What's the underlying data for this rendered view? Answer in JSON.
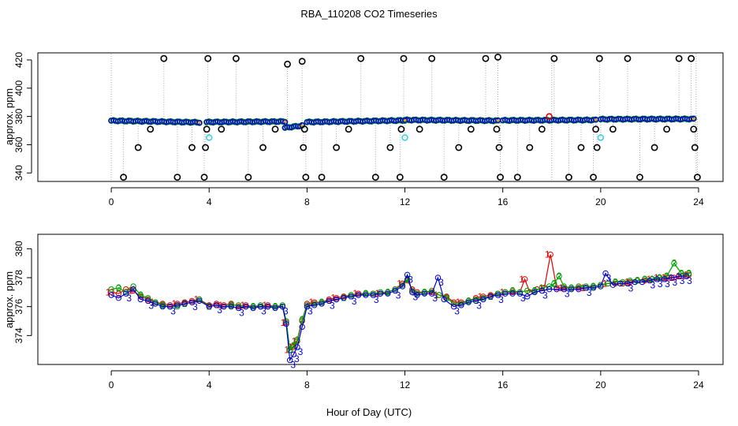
{
  "chart_data": {
    "title": "RBA_110208  CO2 Timeseries",
    "xlabel": "Hour of Day (UTC)",
    "panels": [
      {
        "type": "scatter",
        "ylabel": "approx. ppm",
        "xlim": [
          -3,
          25
        ],
        "ylim": [
          334,
          425
        ],
        "xticks": [
          0,
          4,
          8,
          12,
          16,
          20,
          24
        ],
        "yticks": [
          340,
          360,
          380,
          400,
          420
        ],
        "baseline_segments": [
          {
            "x": [
              0.0,
              3.6
            ],
            "y": [
              377.0,
              375.8
            ]
          },
          {
            "x": [
              3.9,
              7.1
            ],
            "y": [
              376.0,
              376.4
            ]
          },
          {
            "x": [
              7.1,
              7.8
            ],
            "y": [
              372.0,
              373.5
            ]
          },
          {
            "x": [
              8.0,
              12.0
            ],
            "y": [
              376.0,
              377.2
            ]
          },
          {
            "x": [
              12.0,
              15.8
            ],
            "y": [
              377.5,
              377.0
            ]
          },
          {
            "x": [
              16.0,
              19.8
            ],
            "y": [
              377.2,
              377.5
            ]
          },
          {
            "x": [
              20.0,
              23.8
            ],
            "y": [
              378.0,
              378.2
            ]
          }
        ],
        "outliers_black": [
          {
            "x": 0.5,
            "y": 337
          },
          {
            "x": 1.1,
            "y": 358
          },
          {
            "x": 1.6,
            "y": 371
          },
          {
            "x": 2.15,
            "y": 421
          },
          {
            "x": 2.7,
            "y": 337
          },
          {
            "x": 3.3,
            "y": 358
          },
          {
            "x": 3.8,
            "y": 337
          },
          {
            "x": 3.85,
            "y": 358
          },
          {
            "x": 3.9,
            "y": 371
          },
          {
            "x": 3.95,
            "y": 421
          },
          {
            "x": 4.5,
            "y": 371
          },
          {
            "x": 5.1,
            "y": 421
          },
          {
            "x": 5.6,
            "y": 337
          },
          {
            "x": 6.2,
            "y": 358
          },
          {
            "x": 6.7,
            "y": 371
          },
          {
            "x": 7.2,
            "y": 417
          },
          {
            "x": 7.8,
            "y": 419
          },
          {
            "x": 7.85,
            "y": 358
          },
          {
            "x": 7.9,
            "y": 371
          },
          {
            "x": 7.95,
            "y": 337
          },
          {
            "x": 8.6,
            "y": 337
          },
          {
            "x": 9.2,
            "y": 358
          },
          {
            "x": 9.7,
            "y": 371
          },
          {
            "x": 10.2,
            "y": 421
          },
          {
            "x": 10.8,
            "y": 337
          },
          {
            "x": 11.4,
            "y": 358
          },
          {
            "x": 11.8,
            "y": 337
          },
          {
            "x": 11.85,
            "y": 371
          },
          {
            "x": 11.95,
            "y": 421
          },
          {
            "x": 12.6,
            "y": 371
          },
          {
            "x": 13.1,
            "y": 421
          },
          {
            "x": 13.6,
            "y": 337
          },
          {
            "x": 14.2,
            "y": 358
          },
          {
            "x": 14.7,
            "y": 371
          },
          {
            "x": 15.3,
            "y": 421
          },
          {
            "x": 15.75,
            "y": 371
          },
          {
            "x": 15.8,
            "y": 422
          },
          {
            "x": 15.85,
            "y": 358
          },
          {
            "x": 15.9,
            "y": 337
          },
          {
            "x": 16.6,
            "y": 337
          },
          {
            "x": 17.1,
            "y": 358
          },
          {
            "x": 17.6,
            "y": 371
          },
          {
            "x": 18.1,
            "y": 421
          },
          {
            "x": 18.7,
            "y": 337
          },
          {
            "x": 19.2,
            "y": 358
          },
          {
            "x": 19.7,
            "y": 337
          },
          {
            "x": 19.8,
            "y": 371
          },
          {
            "x": 19.85,
            "y": 358
          },
          {
            "x": 19.95,
            "y": 421
          },
          {
            "x": 20.5,
            "y": 371
          },
          {
            "x": 21.1,
            "y": 421
          },
          {
            "x": 21.6,
            "y": 337
          },
          {
            "x": 22.2,
            "y": 358
          },
          {
            "x": 22.7,
            "y": 371
          },
          {
            "x": 23.2,
            "y": 421
          },
          {
            "x": 23.7,
            "y": 421
          },
          {
            "x": 23.8,
            "y": 371
          },
          {
            "x": 23.85,
            "y": 358
          },
          {
            "x": 23.95,
            "y": 337
          }
        ],
        "outliers_cyan": [
          {
            "x": 4.0,
            "y": 365
          },
          {
            "x": 12.0,
            "y": 365
          },
          {
            "x": 20.0,
            "y": 365
          }
        ],
        "outliers_red": [
          {
            "x": 17.9,
            "y": 380
          }
        ]
      },
      {
        "type": "line",
        "ylabel": "approx. ppm",
        "xlim": [
          -3,
          25
        ],
        "ylim": [
          372.0,
          381.0
        ],
        "xticks": [
          0,
          4,
          8,
          12,
          16,
          20,
          24
        ],
        "yticks": [
          374,
          376,
          378,
          380
        ],
        "markers": [
          "1",
          "2",
          "3"
        ],
        "series": [
          {
            "name": "1",
            "color": "#e00000",
            "x": [
              0.0,
              0.3,
              0.6,
              0.9,
              1.2,
              1.5,
              1.8,
              2.1,
              2.4,
              2.7,
              3.0,
              3.3,
              3.6,
              4.0,
              4.3,
              4.6,
              4.9,
              5.2,
              5.5,
              5.8,
              6.1,
              6.4,
              6.7,
              7.0,
              7.15,
              7.3,
              7.45,
              7.6,
              7.8,
              8.0,
              8.3,
              8.6,
              8.9,
              9.2,
              9.5,
              9.8,
              10.1,
              10.4,
              10.7,
              11.0,
              11.3,
              11.6,
              11.9,
              12.1,
              12.3,
              12.5,
              12.8,
              13.1,
              13.4,
              13.7,
              14.0,
              14.3,
              14.6,
              14.9,
              15.2,
              15.5,
              15.8,
              16.1,
              16.4,
              16.7,
              16.9,
              17.1,
              17.4,
              17.7,
              17.95,
              18.2,
              18.5,
              18.8,
              19.1,
              19.4,
              19.7,
              20.0,
              20.3,
              20.6,
              20.9,
              21.2,
              21.5,
              21.8,
              22.1,
              22.4,
              22.7,
              23.0,
              23.3,
              23.6
            ],
            "y": [
              377.0,
              376.9,
              377.2,
              377.1,
              376.7,
              376.5,
              376.3,
              376.2,
              376.1,
              376.2,
              376.3,
              376.4,
              376.5,
              376.1,
              376.2,
              376.1,
              376.2,
              376.0,
              376.1,
              376.0,
              376.0,
              376.1,
              376.0,
              376.0,
              374.9,
              373.0,
              373.2,
              373.6,
              375.0,
              376.2,
              376.3,
              376.3,
              376.5,
              376.6,
              376.7,
              376.8,
              376.9,
              376.9,
              376.9,
              376.9,
              377.0,
              377.2,
              377.6,
              377.8,
              377.2,
              377.0,
              377.0,
              377.0,
              376.8,
              376.7,
              376.3,
              376.3,
              376.4,
              376.6,
              376.7,
              376.8,
              376.9,
              377.0,
              377.0,
              377.0,
              377.9,
              377.0,
              377.2,
              377.3,
              379.6,
              377.3,
              377.3,
              377.3,
              377.3,
              377.3,
              377.4,
              377.5,
              377.6,
              377.6,
              377.6,
              377.7,
              377.8,
              377.8,
              377.9,
              378.0,
              378.0,
              378.0,
              378.1,
              378.2
            ]
          },
          {
            "name": "2",
            "color": "#00a000",
            "x": [
              0.0,
              0.3,
              0.6,
              0.9,
              1.2,
              1.5,
              1.8,
              2.1,
              2.4,
              2.7,
              3.0,
              3.3,
              3.6,
              4.0,
              4.3,
              4.6,
              4.9,
              5.2,
              5.5,
              5.8,
              6.1,
              6.4,
              6.7,
              7.0,
              7.15,
              7.3,
              7.45,
              7.6,
              7.8,
              8.0,
              8.3,
              8.6,
              8.9,
              9.2,
              9.5,
              9.8,
              10.1,
              10.4,
              10.7,
              11.0,
              11.3,
              11.6,
              11.9,
              12.1,
              12.3,
              12.5,
              12.8,
              13.1,
              13.4,
              13.7,
              14.0,
              14.3,
              14.6,
              14.9,
              15.2,
              15.5,
              15.8,
              16.1,
              16.4,
              16.7,
              17.0,
              17.3,
              17.6,
              17.9,
              18.1,
              18.3,
              18.5,
              18.8,
              19.1,
              19.4,
              19.7,
              20.0,
              20.3,
              20.6,
              20.9,
              21.2,
              21.5,
              21.8,
              22.1,
              22.4,
              22.7,
              23.0,
              23.3,
              23.6
            ],
            "y": [
              377.2,
              377.3,
              377.0,
              377.4,
              376.8,
              376.6,
              376.3,
              376.1,
              376.0,
              376.0,
              376.2,
              376.3,
              376.5,
              376.0,
              376.1,
              376.0,
              376.1,
              376.1,
              376.0,
              376.0,
              376.1,
              376.0,
              376.0,
              376.1,
              375.0,
              373.0,
              373.3,
              373.7,
              375.1,
              376.1,
              376.2,
              376.3,
              376.4,
              376.5,
              376.6,
              376.8,
              376.8,
              376.9,
              376.9,
              377.0,
              377.0,
              377.2,
              377.5,
              377.9,
              377.1,
              376.9,
              377.0,
              377.1,
              376.8,
              376.6,
              376.2,
              376.2,
              376.4,
              376.5,
              376.6,
              376.7,
              376.9,
              377.0,
              377.1,
              377.0,
              377.1,
              377.1,
              377.3,
              377.4,
              377.6,
              378.1,
              377.4,
              377.3,
              377.4,
              377.4,
              377.4,
              377.5,
              377.6,
              377.7,
              377.7,
              377.8,
              377.8,
              377.9,
              377.9,
              378.0,
              378.1,
              379.0,
              378.3,
              378.3
            ]
          },
          {
            "name": "3",
            "color": "#0000d0",
            "x": [
              0.0,
              0.3,
              0.6,
              0.9,
              1.2,
              1.5,
              1.8,
              2.1,
              2.4,
              2.7,
              3.0,
              3.3,
              3.6,
              4.0,
              4.3,
              4.6,
              4.9,
              5.2,
              5.5,
              5.8,
              6.1,
              6.4,
              6.7,
              7.0,
              7.15,
              7.3,
              7.45,
              7.6,
              7.8,
              8.0,
              8.3,
              8.6,
              8.9,
              9.2,
              9.5,
              9.8,
              10.1,
              10.4,
              10.7,
              11.0,
              11.3,
              11.6,
              11.9,
              12.1,
              12.3,
              12.5,
              12.8,
              13.1,
              13.35,
              13.6,
              14.0,
              14.3,
              14.6,
              14.9,
              15.2,
              15.5,
              15.8,
              16.1,
              16.4,
              16.7,
              17.0,
              17.3,
              17.6,
              17.9,
              18.2,
              18.5,
              18.8,
              19.1,
              19.4,
              19.7,
              20.0,
              20.2,
              20.5,
              20.8,
              21.1,
              21.4,
              21.7,
              22.0,
              22.3,
              22.6,
              22.9,
              23.2,
              23.5
            ],
            "y": [
              376.8,
              376.6,
              376.9,
              377.2,
              376.5,
              376.4,
              376.2,
              376.0,
              376.0,
              376.1,
              376.2,
              376.3,
              376.4,
              376.0,
              376.1,
              376.0,
              376.0,
              375.9,
              376.0,
              375.9,
              376.0,
              376.0,
              375.9,
              376.0,
              374.8,
              372.3,
              372.7,
              373.2,
              374.6,
              376.0,
              376.1,
              376.2,
              376.4,
              376.5,
              376.6,
              376.7,
              376.8,
              376.8,
              376.8,
              376.9,
              376.9,
              377.1,
              377.4,
              378.2,
              377.0,
              376.8,
              376.9,
              376.9,
              378.0,
              376.5,
              376.0,
              376.1,
              376.3,
              376.4,
              376.5,
              376.7,
              376.8,
              376.9,
              376.9,
              376.9,
              376.7,
              377.0,
              377.1,
              377.2,
              377.2,
              377.2,
              377.2,
              377.2,
              377.3,
              377.3,
              377.4,
              378.3,
              377.5,
              377.6,
              377.6,
              377.7,
              377.7,
              377.8,
              377.9,
              377.9,
              378.0,
              378.1,
              378.1
            ]
          }
        ]
      }
    ]
  }
}
